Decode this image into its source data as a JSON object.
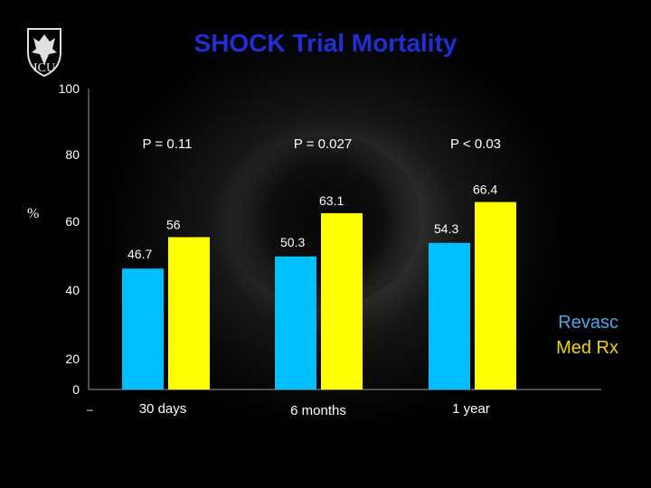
{
  "title": "SHOCK Trial Mortality",
  "logo_text": "ICU",
  "dash_mark": "–",
  "colors": {
    "title": "#1f2fd6",
    "series_a": "#00bfff",
    "series_b": "#ffff00"
  },
  "chart_data": {
    "type": "bar",
    "title": "SHOCK Trial Mortality",
    "ylabel": "%",
    "categories": [
      "30 days",
      "6 months",
      "1 year"
    ],
    "series": [
      {
        "name": "Revasc",
        "values": [
          46.7,
          50.3,
          54.3
        ],
        "color": "#00bfff"
      },
      {
        "name": "Med Rx",
        "values": [
          56,
          63.1,
          66.4
        ],
        "color": "#ffff00"
      }
    ],
    "data_labels": [
      [
        "46.7",
        "56"
      ],
      [
        "50.3",
        "63.1"
      ],
      [
        "54.3",
        "66.4"
      ]
    ],
    "p_values": [
      "P = 0.11",
      "P = 0.027",
      "P < 0.03"
    ],
    "yticks": [
      0,
      20,
      40,
      60,
      80,
      100
    ],
    "ylim": [
      0,
      100
    ],
    "grid": false,
    "legend_position": "right"
  }
}
